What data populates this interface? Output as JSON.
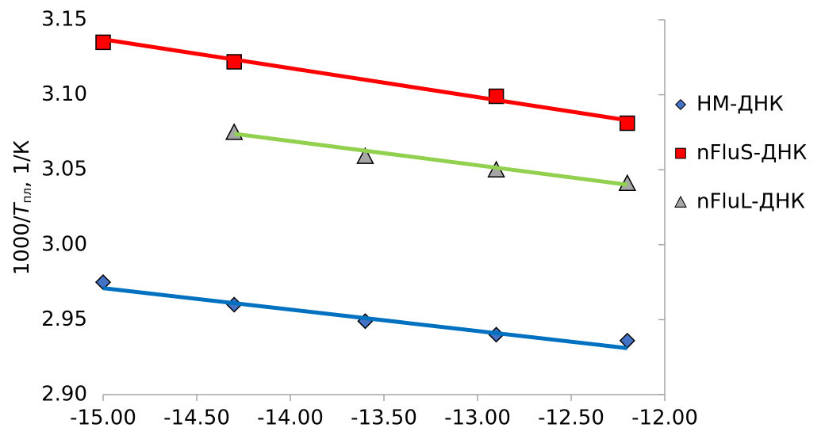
{
  "chart_data": {
    "type": "scatter",
    "ylabel_parts": [
      "1000/",
      "T",
      "пл",
      ", 1/К"
    ],
    "xlim": [
      -15,
      -12
    ],
    "xticks": [
      {
        "value": -15,
        "label": "-15.00"
      },
      {
        "value": -14.5,
        "label": "-14.50"
      },
      {
        "value": -14,
        "label": "-14.00"
      },
      {
        "value": -13.5,
        "label": "-13.50"
      },
      {
        "value": -13,
        "label": "-13.00"
      },
      {
        "value": -12.5,
        "label": "-12.50"
      },
      {
        "value": -12,
        "label": "-12.00"
      }
    ],
    "ylim": [
      2.9,
      3.15
    ],
    "yticks": [
      {
        "value": 2.9,
        "label": "2.90"
      },
      {
        "value": 2.95,
        "label": "2.95"
      },
      {
        "value": 3.0,
        "label": "3.00"
      },
      {
        "value": 3.05,
        "label": "3.05"
      },
      {
        "value": 3.1,
        "label": "3.10"
      },
      {
        "value": 3.15,
        "label": "3.15"
      }
    ],
    "series": [
      {
        "name": "НМ-ДНК",
        "color": "#4472c4",
        "line_color": "#0070c0",
        "marker": "diamond",
        "x": [
          -15,
          -14.3,
          -13.6,
          -12.9,
          -12.2
        ],
        "values": [
          2.975,
          2.96,
          2.949,
          2.94,
          2.936
        ],
        "trend_x": [
          -15,
          -12.2
        ],
        "trend_values": [
          2.971,
          2.931
        ]
      },
      {
        "name": "nFluS-ДНК",
        "color": "#ff0000",
        "line_color": "#ff0000",
        "marker": "square",
        "x": [
          -15,
          -14.3,
          -12.9,
          -12.2
        ],
        "values": [
          3.135,
          3.122,
          3.099,
          3.081
        ],
        "trend_x": [
          -15,
          -12.2
        ],
        "trend_values": [
          3.137,
          3.083
        ]
      },
      {
        "name": "nFluL-ДНК",
        "color": "#a6a6a6",
        "line_color": "#92d050",
        "marker": "triangle",
        "x": [
          -14.3,
          -13.6,
          -12.9,
          -12.2
        ],
        "values": [
          3.075,
          3.059,
          3.05,
          3.041
        ],
        "trend_x": [
          -14.3,
          -12.2
        ],
        "trend_values": [
          3.074,
          3.04
        ]
      }
    ]
  }
}
